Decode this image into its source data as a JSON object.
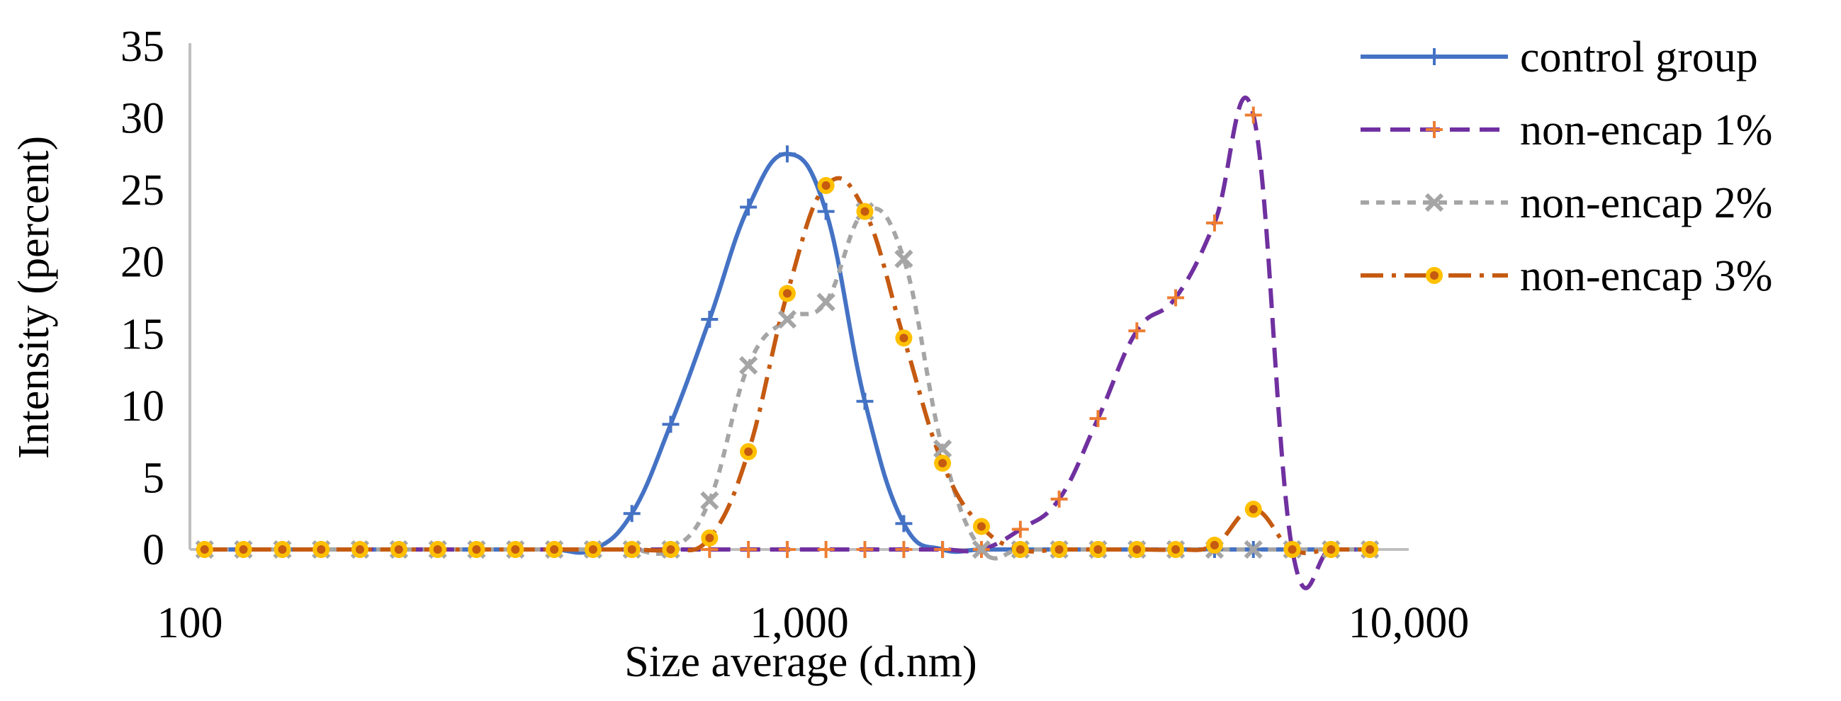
{
  "chart_data": {
    "type": "line",
    "xscale": "log",
    "xlim": [
      100,
      10000
    ],
    "ylim": [
      0,
      35
    ],
    "xlabel": "Size average (d.nm)",
    "ylabel": "Intensity (percent)",
    "xticks": [
      100,
      1000,
      10000
    ],
    "xtick_labels": [
      "100",
      "1,000",
      "10,000"
    ],
    "yticks": [
      0,
      5,
      10,
      15,
      20,
      25,
      30,
      35
    ],
    "ytick_labels": [
      "0",
      "5",
      "10",
      "15",
      "20",
      "25",
      "30",
      "35"
    ],
    "legend_position": "right",
    "x": [
      105.7,
      122.4,
      141.8,
      164.2,
      190.1,
      220.2,
      255.0,
      295.3,
      342.0,
      396.1,
      458.7,
      531.2,
      615.1,
      712.4,
      825.0,
      955.4,
      1106,
      1281,
      1484,
      1718,
      1990,
      2305,
      2669,
      3091,
      3580,
      4145,
      4801,
      5560,
      6439,
      7456,
      8635
    ],
    "series": [
      {
        "name": "control group",
        "color": "#4472C4",
        "dash": "solid",
        "marker": "plus",
        "marker_color": "#4472C4",
        "values": [
          0,
          0,
          0,
          0,
          0,
          0,
          0,
          0,
          0,
          0,
          0,
          2.5,
          8.7,
          16.0,
          23.8,
          27.5,
          23.5,
          10.3,
          1.8,
          0,
          0,
          0,
          0,
          0,
          0,
          0,
          0,
          0,
          0,
          0,
          0
        ]
      },
      {
        "name": "non-encap 1%",
        "color": "#7030A0",
        "dash": "dashed",
        "marker": "plus",
        "marker_color": "#ED7D31",
        "values": [
          0,
          0,
          0,
          0,
          0,
          0,
          0,
          0,
          0,
          0,
          0,
          0,
          0,
          0,
          0,
          0,
          0,
          0,
          0,
          0,
          0,
          1.4,
          3.5,
          9.1,
          15.2,
          17.5,
          22.7,
          30.2,
          0,
          0,
          0
        ]
      },
      {
        "name": "non-encap 2%",
        "color": "#A5A5A5",
        "dash": "short-dash",
        "marker": "x",
        "marker_color": "#A5A5A5",
        "values": [
          0,
          0,
          0,
          0,
          0,
          0,
          0,
          0,
          0,
          0,
          0,
          0,
          0,
          3.4,
          12.8,
          16.0,
          17.2,
          23.5,
          20.2,
          7.0,
          0,
          0,
          0,
          0,
          0,
          0,
          0,
          0,
          0,
          0,
          0
        ]
      },
      {
        "name": "non-encap 3%",
        "color": "#C55A11",
        "dash": "dash-dot",
        "marker": "circle",
        "marker_color": "#FFC000",
        "values": [
          0,
          0,
          0,
          0,
          0,
          0,
          0,
          0,
          0,
          0,
          0,
          0,
          0,
          0.8,
          6.8,
          17.8,
          25.3,
          23.5,
          14.7,
          6.0,
          1.6,
          0,
          0,
          0,
          0,
          0,
          0.3,
          2.8,
          0,
          0,
          0
        ]
      }
    ]
  }
}
